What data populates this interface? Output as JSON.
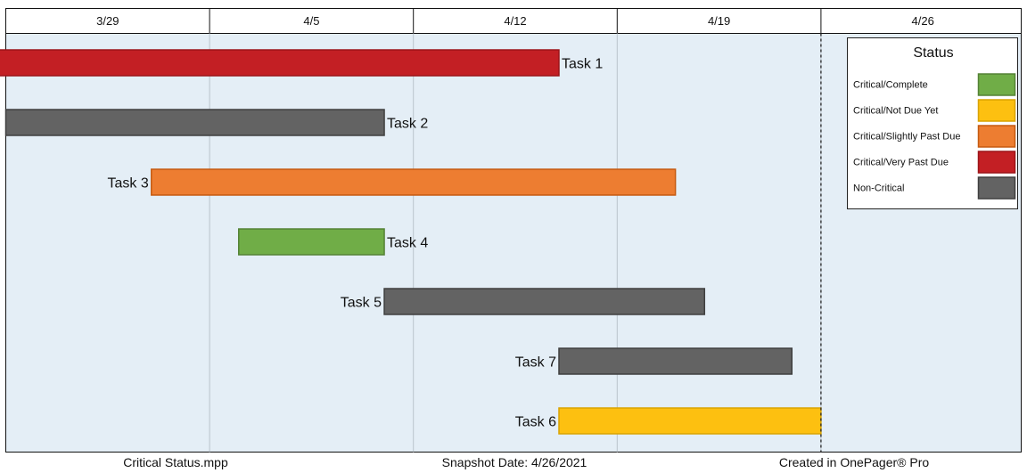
{
  "chart_data": {
    "type": "gantt",
    "x_ticks": [
      "3/29",
      "4/5",
      "4/12",
      "4/19",
      "4/26"
    ],
    "snapshot_date": "4/26/2021",
    "tasks": [
      {
        "name": "Task 1",
        "start": "3/27/2021",
        "end": "4/17/2021",
        "status": "Critical/Very Past Due",
        "label_side": "right"
      },
      {
        "name": "Task 2",
        "start": "3/29/2021",
        "end": "4/11/2021",
        "status": "Non-Critical",
        "label_side": "right"
      },
      {
        "name": "Task 3",
        "start": "4/3/2021",
        "end": "4/21/2021",
        "status": "Critical/Slightly Past Due",
        "label_side": "left"
      },
      {
        "name": "Task 4",
        "start": "4/6/2021",
        "end": "4/11/2021",
        "status": "Critical/Complete",
        "label_side": "right"
      },
      {
        "name": "Task 5",
        "start": "4/11/2021",
        "end": "4/22/2021",
        "status": "Non-Critical",
        "label_side": "left"
      },
      {
        "name": "Task 7",
        "start": "4/17/2021",
        "end": "4/25/2021",
        "status": "Non-Critical",
        "label_side": "left"
      },
      {
        "name": "Task 6",
        "start": "4/17/2021",
        "end": "4/26/2021",
        "status": "Critical/Not Due Yet",
        "label_side": "left"
      }
    ],
    "legend": {
      "title": "Status",
      "placement": "top-right",
      "items": [
        {
          "label": "Critical/Complete",
          "color": "#70ad47",
          "stroke": "#548235"
        },
        {
          "label": "Critical/Not Due Yet",
          "color": "#fdc010",
          "stroke": "#d9a300"
        },
        {
          "label": "Critical/Slightly Past Due",
          "color": "#ed7d31",
          "stroke": "#c55a11"
        },
        {
          "label": "Critical/Very Past Due",
          "color": "#c31f24",
          "stroke": "#9c1418"
        },
        {
          "label": "Non-Critical",
          "color": "#636363",
          "stroke": "#3f3f3f"
        }
      ]
    },
    "grid": true,
    "plot_background": "#e4eef6"
  },
  "footer": {
    "file_name": "Critical Status.mpp",
    "snapshot_label": "Snapshot Date: 4/26/2021",
    "credit": "Created in OnePager® Pro"
  }
}
